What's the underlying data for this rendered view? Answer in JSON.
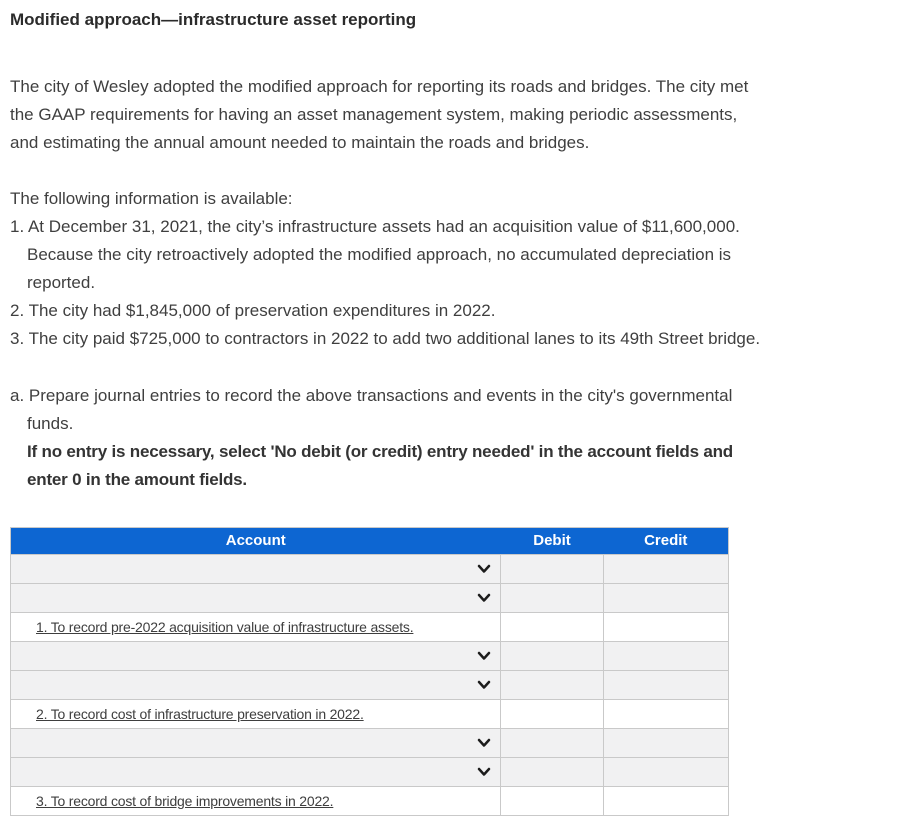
{
  "title": "Modified approach—infrastructure asset reporting",
  "intro": "The city of Wesley adopted the modified approach for reporting its roads and bridges. The city met\nthe GAAP requirements for having an asset management system, making periodic assessments,\nand estimating the annual amount needed to maintain the roads and bridges.",
  "info": {
    "heading": "The following information is available:",
    "items": [
      "1. At December 31, 2021, the city’s infrastructure assets had an acquisition value of $11,600,000.\nBecause the city retroactively adopted the modified approach, no accumulated depreciation is\nreported.",
      "2. The city had $1,845,000 of preservation expenditures in 2022.",
      "3. The city paid $725,000 to contractors in 2022 to add two additional lanes to its 49th Street bridge."
    ]
  },
  "requirement": {
    "text": "a. Prepare journal entries to record the above transactions and events in the city's governmental\nfunds.",
    "note": "If no entry is necessary, select 'No debit (or credit) entry needed' in the account fields and\nenter 0 in the amount fields."
  },
  "journal_table": {
    "headers": {
      "account": "Account",
      "debit": "Debit",
      "credit": "Credit"
    },
    "rows": [
      {
        "type": "account_select",
        "selected_value": "",
        "debit_value": "",
        "credit_value": ""
      },
      {
        "type": "account_select",
        "selected_value": "",
        "debit_value": "",
        "credit_value": ""
      },
      {
        "type": "description",
        "label": "1. To record pre-2022 acquisition value of infrastructure assets."
      },
      {
        "type": "account_select",
        "selected_value": "",
        "debit_value": "",
        "credit_value": ""
      },
      {
        "type": "account_select",
        "selected_value": "",
        "debit_value": "",
        "credit_value": ""
      },
      {
        "type": "description",
        "label": "2. To record cost of infrastructure preservation in 2022."
      },
      {
        "type": "account_select",
        "selected_value": "",
        "debit_value": "",
        "credit_value": ""
      },
      {
        "type": "account_select",
        "selected_value": "",
        "debit_value": "",
        "credit_value": ""
      },
      {
        "type": "description",
        "label": "3. To record cost of bridge improvements in 2022."
      }
    ]
  },
  "colors": {
    "table_header_bg": "#0d66d2",
    "table_header_text": "#ffffff",
    "row_bg": "#f1f1f2",
    "border": "#c9c9c9",
    "text": "#3f3f3f"
  }
}
